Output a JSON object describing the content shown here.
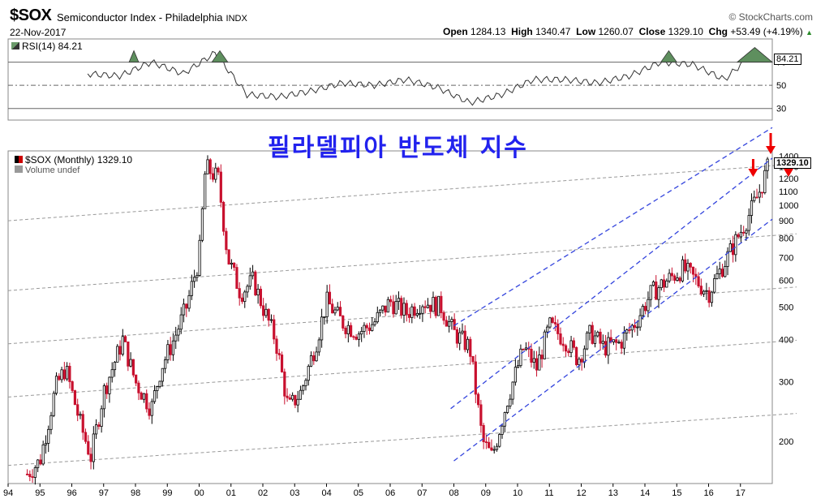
{
  "header": {
    "symbol": "$SOX",
    "description": "Semiconductor Index - Philadelphia",
    "exchange": "INDX",
    "date": "22-Nov-2017",
    "brand": "© StockCharts.com",
    "open_label": "Open",
    "open": "1284.13",
    "high_label": "High",
    "high": "1340.47",
    "low_label": "Low",
    "low": "1260.07",
    "close_label": "Close",
    "close": "1329.10",
    "chg_label": "Chg",
    "chg": "+53.49 (+4.19%)"
  },
  "rsi_legend": "RSI(14) 84.21",
  "price_legend": "$SOX (Monthly) 1329.10",
  "volume_legend": "Volume undef",
  "annotation": "필라델피아 반도체 지수",
  "chart_data": [
    {
      "type": "line",
      "series": [
        {
          "name": "RSI(14)",
          "last": 84.21
        }
      ],
      "yticks": [
        30,
        50,
        70
      ],
      "ylim": [
        20,
        90
      ],
      "reference_lines": [
        30,
        70
      ],
      "x": [
        "1996",
        "1997",
        "1998",
        "1999",
        "2000",
        "2001",
        "2002",
        "2003",
        "2004",
        "2005",
        "2006",
        "2007",
        "2008",
        "2009",
        "2010",
        "2011",
        "2012",
        "2013",
        "2014",
        "2015",
        "2016",
        "2017"
      ],
      "values": [
        60,
        58,
        70,
        60,
        78,
        42,
        40,
        45,
        52,
        50,
        55,
        48,
        35,
        42,
        55,
        55,
        52,
        58,
        70,
        68,
        55,
        80
      ]
    },
    {
      "type": "candlestick",
      "scale": "log",
      "ylim": [
        150,
        1450
      ],
      "yticks": [
        200,
        300,
        400,
        500,
        600,
        700,
        800,
        900,
        1000,
        1100,
        1200,
        1300,
        1400
      ],
      "xticks": [
        "94",
        "95",
        "96",
        "97",
        "98",
        "99",
        "00",
        "01",
        "02",
        "03",
        "04",
        "05",
        "06",
        "07",
        "08",
        "09",
        "10",
        "11",
        "12",
        "13",
        "14",
        "15",
        "16",
        "17"
      ],
      "last_value": "1329.10",
      "series": [
        {
          "name": "$SOX",
          "t": [
            1994.6,
            1995.0,
            1995.5,
            1995.8,
            1996.3,
            1996.6,
            1997.0,
            1997.6,
            1998.0,
            1998.5,
            1998.8,
            1999.2,
            1999.6,
            2000.0,
            2000.2,
            2000.6,
            2000.9,
            2001.3,
            2001.7,
            2002.0,
            2002.4,
            2002.8,
            2003.2,
            2003.7,
            2004.0,
            2004.5,
            2005.0,
            2005.5,
            2006.0,
            2006.5,
            2007.0,
            2007.6,
            2008.0,
            2008.5,
            2008.9,
            2009.2,
            2009.7,
            2010.2,
            2010.6,
            2011.0,
            2011.5,
            2011.9,
            2012.3,
            2012.7,
            2013.2,
            2013.7,
            2014.2,
            2014.7,
            2015.2,
            2015.6,
            2016.0,
            2016.4,
            2016.9,
            2017.3,
            2017.6,
            2017.9
          ],
          "v": [
            160,
            175,
            290,
            330,
            220,
            180,
            280,
            400,
            300,
            250,
            330,
            400,
            500,
            700,
            1300,
            1200,
            700,
            550,
            600,
            500,
            400,
            250,
            280,
            400,
            520,
            450,
            420,
            450,
            520,
            480,
            520,
            500,
            420,
            380,
            200,
            180,
            270,
            380,
            330,
            440,
            400,
            350,
            420,
            380,
            390,
            450,
            550,
            600,
            650,
            600,
            550,
            650,
            800,
            950,
            1100,
            1329
          ]
        }
      ]
    }
  ]
}
